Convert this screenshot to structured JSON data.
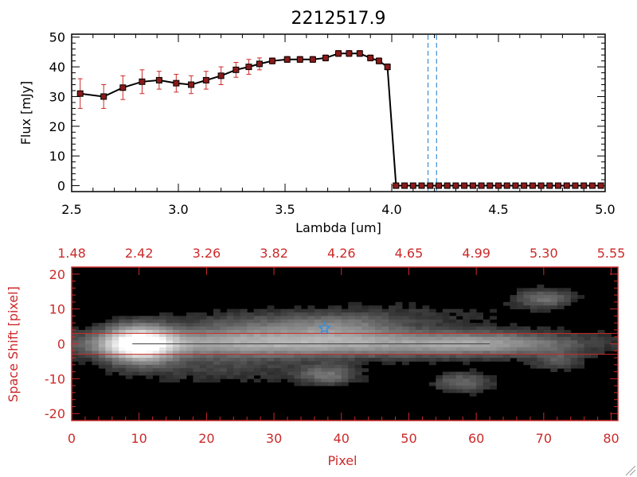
{
  "chart_data": [
    {
      "type": "line",
      "title": "2212517.9",
      "xlabel": "Lambda [um]",
      "ylabel": "Flux [mJy]",
      "xlim": [
        2.5,
        5.0
      ],
      "ylim": [
        -2,
        51
      ],
      "x_ticks": [
        "2.5",
        "3.0",
        "3.5",
        "4.0",
        "4.5",
        "5.0"
      ],
      "y_ticks": [
        "0",
        "10",
        "20",
        "30",
        "40",
        "50"
      ],
      "series": [
        {
          "name": "flux",
          "color": "#000000",
          "marker_color": "#8b1a1a",
          "errorbar_color": "#cc2a2a",
          "x": [
            2.54,
            2.65,
            2.74,
            2.83,
            2.91,
            2.99,
            3.06,
            3.13,
            3.2,
            3.27,
            3.33,
            3.38,
            3.44,
            3.51,
            3.57,
            3.63,
            3.69,
            3.75,
            3.8,
            3.85,
            3.9,
            3.94,
            3.98,
            4.02,
            4.06,
            4.1,
            4.14,
            4.18,
            4.22,
            4.26,
            4.3,
            4.34,
            4.38,
            4.42,
            4.46,
            4.5,
            4.54,
            4.58,
            4.62,
            4.66,
            4.7,
            4.74,
            4.78,
            4.82,
            4.86,
            4.9,
            4.94,
            4.98
          ],
          "y": [
            31,
            30,
            33,
            35,
            35.5,
            34.5,
            34,
            35.5,
            37,
            39,
            40,
            41,
            42,
            42.5,
            42.5,
            42.5,
            43,
            44.5,
            44.5,
            44.5,
            43,
            42,
            40,
            0,
            0,
            0,
            0,
            0,
            0,
            0,
            0,
            0,
            0,
            0,
            0,
            0,
            0,
            0,
            0,
            0,
            0,
            0,
            0,
            0,
            0,
            0,
            0,
            0
          ],
          "yerr": [
            5,
            4,
            4,
            4,
            3,
            3,
            3,
            3,
            3,
            2.5,
            2.5,
            2,
            1,
            1,
            1,
            1,
            1,
            1,
            1,
            1,
            1,
            1,
            1,
            0,
            0,
            0,
            0,
            0,
            0,
            0,
            0,
            0,
            0,
            0,
            0,
            0,
            0,
            0,
            0,
            0,
            0,
            0,
            0,
            0,
            0,
            0,
            0,
            0
          ]
        }
      ],
      "vlines": {
        "x": [
          4.17,
          4.21
        ],
        "color": "#3d8fd6",
        "style": "dashed"
      },
      "hline": {
        "y": 0,
        "color": "#cc2a2a",
        "style": "dashed"
      }
    },
    {
      "type": "heatmap",
      "xlabel": "Pixel",
      "ylabel": "Space Shift [pixel]",
      "xlim": [
        0,
        81
      ],
      "ylim": [
        -22,
        22
      ],
      "x_ticks": [
        "0",
        "10",
        "20",
        "30",
        "40",
        "50",
        "60",
        "70",
        "80"
      ],
      "y_ticks": [
        "-20",
        "-10",
        "0",
        "10",
        "20"
      ],
      "top_axis_label_values": [
        "1.48",
        "2.42",
        "3.26",
        "3.82",
        "4.26",
        "4.65",
        "4.99",
        "5.30",
        "5.55"
      ],
      "axis_color": "#cc2a2a",
      "trace_band_y": [
        -3,
        3
      ],
      "star_marker": {
        "x": 37.5,
        "y": 4.5,
        "color": "#3d8fd6"
      },
      "blobs": [
        {
          "x": 10,
          "y": 0,
          "sx": 3.5,
          "sy": 3.5,
          "a": 1.0
        },
        {
          "x": 34,
          "y": 0,
          "sx": 24,
          "sy": 2.6,
          "a": 0.55
        },
        {
          "x": 62,
          "y": 0,
          "sx": 8,
          "sy": 2.2,
          "a": 0.25
        },
        {
          "x": 27,
          "y": 5,
          "sx": 8,
          "sy": 3,
          "a": 0.22
        },
        {
          "x": 40,
          "y": 5,
          "sx": 6,
          "sy": 2.5,
          "a": 0.25
        },
        {
          "x": 38,
          "y": -9,
          "sx": 3,
          "sy": 2,
          "a": 0.3
        },
        {
          "x": 58,
          "y": -11,
          "sx": 3,
          "sy": 2,
          "a": 0.28
        },
        {
          "x": 70,
          "y": 13,
          "sx": 3,
          "sy": 2,
          "a": 0.3
        },
        {
          "x": 72,
          "y": -5,
          "sx": 2.5,
          "sy": 2,
          "a": 0.2
        },
        {
          "x": 22,
          "y": -7,
          "sx": 10,
          "sy": 3,
          "a": 0.14
        },
        {
          "x": 50,
          "y": 8,
          "sx": 10,
          "sy": 3,
          "a": 0.1
        }
      ]
    }
  ]
}
